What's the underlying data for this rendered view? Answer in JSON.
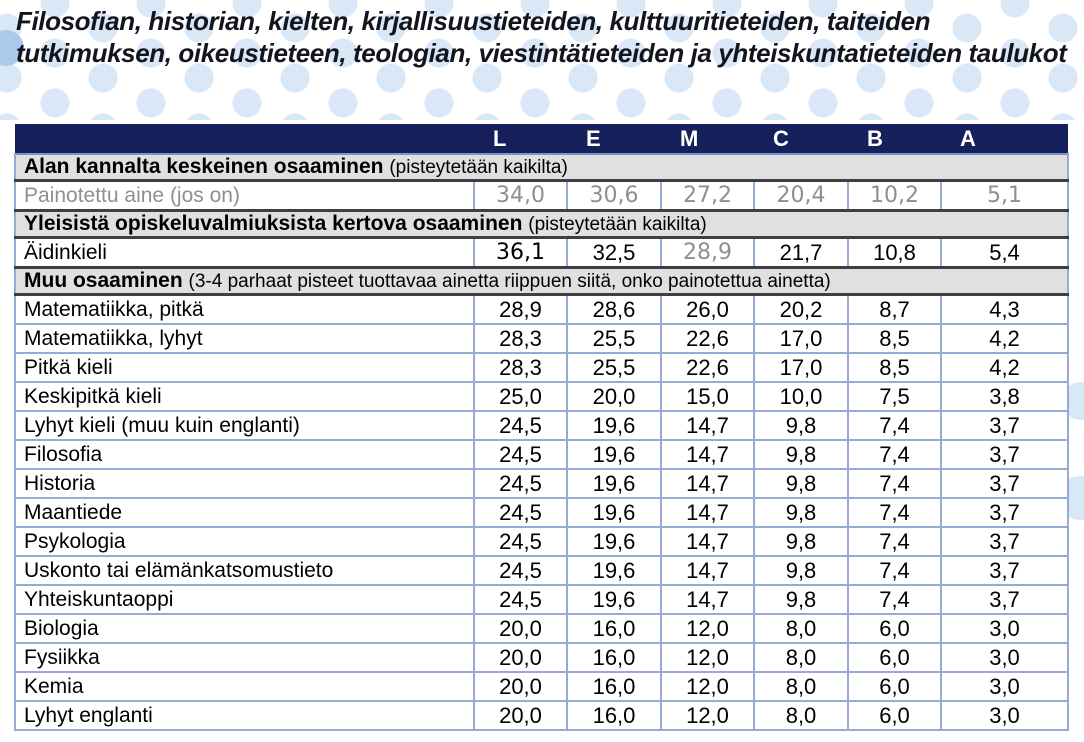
{
  "title": "Filosofian, historian, kielten, kirjallisuustieteiden, kulttuuritieteiden, taiteiden tutkimuksen, oikeustieteen, teologian, viestintätieteiden ja yhteiskuntatieteiden taulukot",
  "colors": {
    "header_navy": "#16205b",
    "header_text": "#ffffff",
    "grid_blue": "#95aad5",
    "header_underline_blue": "#7b93cc",
    "section_bg": "#e0e0e0",
    "section_border_dark": "#3f3f3f",
    "muted_text": "#8f8f8f",
    "body_text": "#000000",
    "dot_pale_blue": "#d9e8f7",
    "dot_strong_blue": "#aac9eb"
  },
  "table": {
    "column_headers": [
      "L",
      "E",
      "M",
      "C",
      "B",
      "A"
    ],
    "sections": [
      {
        "heading": "Alan kannalta keskeinen osaaminen",
        "note": "(pisteytetään kaikilta)",
        "rows": [
          {
            "label": "Painotettu aine (jos on)",
            "label_muted": true,
            "values": [
              "34,0",
              "30,6",
              "27,2",
              "20,4",
              "10,2",
              "5,1"
            ],
            "value_classes": [
              "wide muted",
              "wide muted",
              "wide muted",
              "wide muted",
              "wide muted",
              "wide muted"
            ]
          }
        ]
      },
      {
        "heading": "Yleisistä opiskeluvalmiuksista kertova osaaminen",
        "note": "(pisteytetään kaikilta)",
        "rows": [
          {
            "label": "Äidinkieli",
            "values": [
              "36,1",
              "32,5",
              "28,9",
              "21,7",
              "10,8",
              "5,4"
            ],
            "value_classes": [
              "wide",
              "",
              "wide muted",
              "",
              "",
              ""
            ]
          }
        ]
      },
      {
        "heading": "Muu osaaminen",
        "note": "(3-4 parhaat pisteet tuottavaa ainetta riippuen siitä, onko painotettua ainetta)",
        "rows": [
          {
            "label": "Matematiikka, pitkä",
            "values": [
              "28,9",
              "28,6",
              "26,0",
              "20,2",
              "8,7",
              "4,3"
            ]
          },
          {
            "label": "Matematiikka, lyhyt",
            "values": [
              "28,3",
              "25,5",
              "22,6",
              "17,0",
              "8,5",
              "4,2"
            ]
          },
          {
            "label": "Pitkä kieli",
            "values": [
              "28,3",
              "25,5",
              "22,6",
              "17,0",
              "8,5",
              "4,2"
            ]
          },
          {
            "label": "Keskipitkä kieli",
            "values": [
              "25,0",
              "20,0",
              "15,0",
              "10,0",
              "7,5",
              "3,8"
            ]
          },
          {
            "label": "Lyhyt kieli (muu kuin englanti)",
            "values": [
              "24,5",
              "19,6",
              "14,7",
              "9,8",
              "7,4",
              "3,7"
            ]
          },
          {
            "label": "Filosofia",
            "values": [
              "24,5",
              "19,6",
              "14,7",
              "9,8",
              "7,4",
              "3,7"
            ]
          },
          {
            "label": "Historia",
            "values": [
              "24,5",
              "19,6",
              "14,7",
              "9,8",
              "7,4",
              "3,7"
            ]
          },
          {
            "label": "Maantiede",
            "values": [
              "24,5",
              "19,6",
              "14,7",
              "9,8",
              "7,4",
              "3,7"
            ]
          },
          {
            "label": "Psykologia",
            "values": [
              "24,5",
              "19,6",
              "14,7",
              "9,8",
              "7,4",
              "3,7"
            ]
          },
          {
            "label": "Uskonto tai elämänkatsomustieto",
            "values": [
              "24,5",
              "19,6",
              "14,7",
              "9,8",
              "7,4",
              "3,7"
            ]
          },
          {
            "label": "Yhteiskuntaoppi",
            "values": [
              "24,5",
              "19,6",
              "14,7",
              "9,8",
              "7,4",
              "3,7"
            ]
          },
          {
            "label": "Biologia",
            "values": [
              "20,0",
              "16,0",
              "12,0",
              "8,0",
              "6,0",
              "3,0"
            ]
          },
          {
            "label": "Fysiikka",
            "values": [
              "20,0",
              "16,0",
              "12,0",
              "8,0",
              "6,0",
              "3,0"
            ]
          },
          {
            "label": "Kemia",
            "values": [
              "20,0",
              "16,0",
              "12,0",
              "8,0",
              "6,0",
              "3,0"
            ]
          },
          {
            "label": "Lyhyt englanti",
            "values": [
              "20,0",
              "16,0",
              "12,0",
              "8,0",
              "6,0",
              "3,0"
            ]
          }
        ]
      }
    ]
  }
}
